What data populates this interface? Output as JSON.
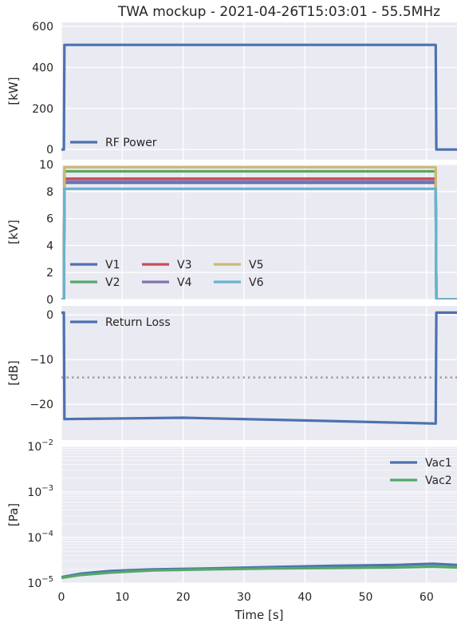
{
  "title": "TWA mockup - 2021-04-26T15:03:01 - 55.5MHz",
  "xlabel": "Time [s]",
  "xlim": [
    0,
    65
  ],
  "xticks": [
    0,
    10,
    20,
    30,
    40,
    50,
    60
  ],
  "chart_data": [
    {
      "type": "line",
      "ylabel": "[kW]",
      "ylim": [
        -50,
        620
      ],
      "yticks": [
        0,
        200,
        400,
        600
      ],
      "grid": true,
      "legend": "bottom-left",
      "series": [
        {
          "name": "RF Power",
          "color": "#4c72b0",
          "points": [
            [
              0,
              0
            ],
            [
              0.4,
              0
            ],
            [
              0.5,
              510
            ],
            [
              61.5,
              510
            ],
            [
              61.6,
              0
            ],
            [
              65,
              0
            ]
          ]
        }
      ]
    },
    {
      "type": "line",
      "ylabel": "[kV]",
      "ylim": [
        0,
        10
      ],
      "yticks": [
        0,
        2,
        4,
        6,
        8,
        10
      ],
      "grid": true,
      "legend": "bottom-left",
      "legend_columns": 3,
      "series": [
        {
          "name": "V1",
          "color": "#4c72b0",
          "points": [
            [
              0,
              0
            ],
            [
              0.4,
              0
            ],
            [
              0.5,
              8.65
            ],
            [
              61.5,
              8.65
            ],
            [
              61.6,
              0
            ],
            [
              65,
              0
            ]
          ]
        },
        {
          "name": "V2",
          "color": "#55a868",
          "points": [
            [
              0,
              0
            ],
            [
              0.4,
              0
            ],
            [
              0.5,
              9.5
            ],
            [
              61.5,
              9.5
            ],
            [
              61.6,
              0
            ],
            [
              65,
              0
            ]
          ]
        },
        {
          "name": "V3",
          "color": "#c44e52",
          "points": [
            [
              0,
              0
            ],
            [
              0.4,
              0
            ],
            [
              0.5,
              8.95
            ],
            [
              61.5,
              8.95
            ],
            [
              61.6,
              0
            ],
            [
              65,
              0
            ]
          ]
        },
        {
          "name": "V4",
          "color": "#8172b2",
          "points": [
            [
              0,
              0
            ],
            [
              0.4,
              0
            ],
            [
              0.5,
              8.75
            ],
            [
              61.5,
              8.75
            ],
            [
              61.6,
              0
            ],
            [
              65,
              0
            ]
          ]
        },
        {
          "name": "V5",
          "color": "#ccb974",
          "points": [
            [
              0,
              0
            ],
            [
              0.4,
              0
            ],
            [
              0.5,
              9.8
            ],
            [
              61.5,
              9.8
            ],
            [
              61.6,
              0
            ],
            [
              65,
              0
            ]
          ]
        },
        {
          "name": "V6",
          "color": "#64b5cd",
          "points": [
            [
              0,
              0
            ],
            [
              0.4,
              0
            ],
            [
              0.5,
              8.2
            ],
            [
              61.5,
              8.2
            ],
            [
              61.6,
              0
            ],
            [
              65,
              0
            ]
          ]
        }
      ]
    },
    {
      "type": "line",
      "ylabel": "[dB]",
      "ylim": [
        -28,
        2
      ],
      "yticks": [
        0,
        -10,
        -20
      ],
      "grid": true,
      "legend": "top-left",
      "reference_line": {
        "y": -14,
        "style": "dotted",
        "color": "#a0a0a0"
      },
      "series": [
        {
          "name": "Return Loss",
          "color": "#4c72b0",
          "points": [
            [
              0,
              0.5
            ],
            [
              0.4,
              0.5
            ],
            [
              0.5,
              -23.3
            ],
            [
              20,
              -23.0
            ],
            [
              40,
              -23.6
            ],
            [
              61.5,
              -24.3
            ],
            [
              61.6,
              0.5
            ],
            [
              65,
              0.5
            ]
          ]
        }
      ]
    },
    {
      "type": "line",
      "ylabel": "[Pa]",
      "yscale": "log",
      "ylim": [
        1e-05,
        0.01
      ],
      "yticks": [
        1e-05,
        0.0001,
        0.001,
        0.01
      ],
      "ytick_labels": [
        {
          "base": "10",
          "exp": "−5"
        },
        {
          "base": "10",
          "exp": "−4"
        },
        {
          "base": "10",
          "exp": "−3"
        },
        {
          "base": "10",
          "exp": "−2"
        }
      ],
      "grid": true,
      "legend": "top-right",
      "series": [
        {
          "name": "Vac1",
          "color": "#4c72b0",
          "points": [
            [
              0,
              1.35e-05
            ],
            [
              3,
              1.6e-05
            ],
            [
              8,
              1.85e-05
            ],
            [
              15,
              2e-05
            ],
            [
              25,
              2.1e-05
            ],
            [
              35,
              2.25e-05
            ],
            [
              45,
              2.4e-05
            ],
            [
              55,
              2.5e-05
            ],
            [
              61,
              2.65e-05
            ],
            [
              65,
              2.5e-05
            ]
          ]
        },
        {
          "name": "Vac2",
          "color": "#55a868",
          "points": [
            [
              0,
              1.3e-05
            ],
            [
              3,
              1.5e-05
            ],
            [
              8,
              1.7e-05
            ],
            [
              15,
              1.9e-05
            ],
            [
              25,
              2e-05
            ],
            [
              35,
              2.1e-05
            ],
            [
              45,
              2.15e-05
            ],
            [
              55,
              2.2e-05
            ],
            [
              61,
              2.3e-05
            ],
            [
              65,
              2.2e-05
            ]
          ]
        }
      ]
    }
  ]
}
